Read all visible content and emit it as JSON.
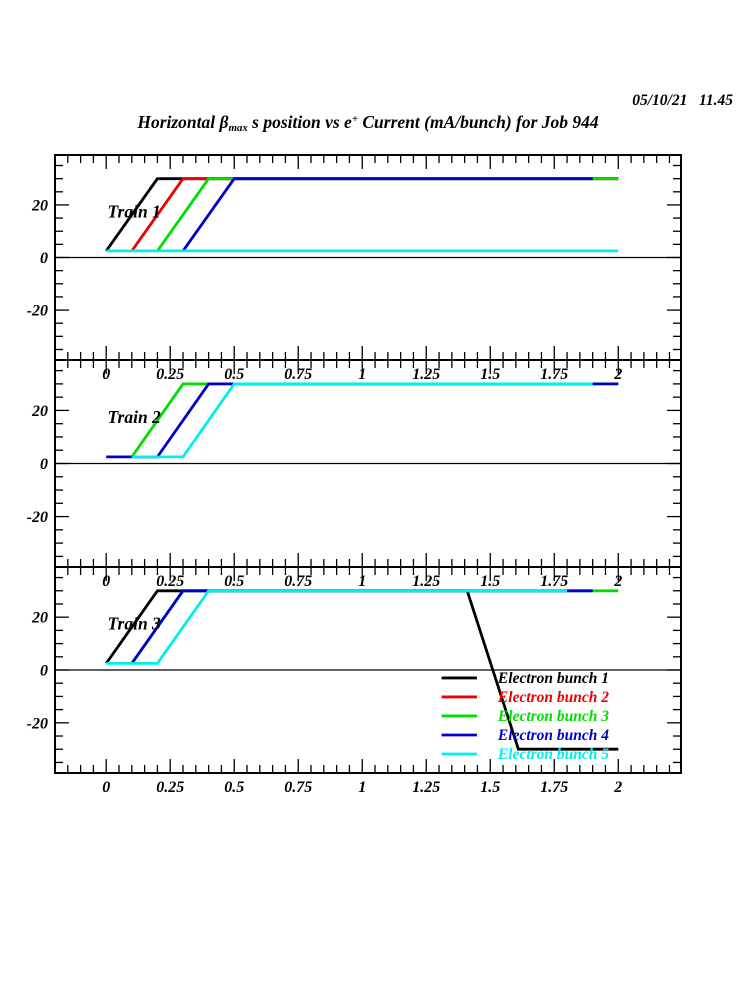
{
  "header": {
    "timestamp": "05/10/21   11.45",
    "title": {
      "part1": "Horizontal ",
      "beta": "β",
      "beta_sub": "max",
      "part2": " s position vs e",
      "e_sup": "+",
      "part3": " Current (mA/bunch) for Job 944"
    }
  },
  "colors": {
    "bunch1": "#000000",
    "bunch2": "#ee0000",
    "bunch3": "#00dd00",
    "bunch4": "#0000cc",
    "bunch5": "#00eeee",
    "frame": "#000000",
    "background": "#ffffff"
  },
  "axes": {
    "xlim": [
      -0.2,
      2.245
    ],
    "ylim": [
      -39,
      39
    ],
    "x_tick_values": [
      0,
      0.25,
      0.5,
      0.75,
      1,
      1.25,
      1.5,
      1.75,
      2
    ],
    "x_tick_labels": [
      "0",
      "0.25",
      "0.5",
      "0.75",
      "1",
      "1.25",
      "1.5",
      "1.75",
      "2"
    ],
    "x_minor_step": 0.05,
    "y_tick_values": [
      20,
      0,
      -20
    ],
    "y_tick_labels": [
      "20",
      "0",
      "-20"
    ],
    "y_minor_step": 5,
    "xlabel": "",
    "ylabel": "",
    "grid": false
  },
  "chart_data": [
    {
      "type": "line",
      "panel": "Train 1",
      "annotation": {
        "text": "Train 1",
        "x": 0.005,
        "y": 15.3
      },
      "series": [
        {
          "name": "Electron bunch 1",
          "color_key": "bunch1",
          "points": [
            [
              0,
              2.5
            ],
            [
              0.2,
              30
            ],
            [
              2,
              30
            ]
          ]
        },
        {
          "name": "Electron bunch 2",
          "color_key": "bunch2",
          "points": [
            [
              0.1,
              2.5
            ],
            [
              0.3,
              30
            ],
            [
              2,
              30
            ]
          ]
        },
        {
          "name": "Electron bunch 3",
          "color_key": "bunch3",
          "points": [
            [
              0.2,
              2.5
            ],
            [
              0.4,
              30
            ],
            [
              2,
              30
            ]
          ]
        },
        {
          "name": "Electron bunch 4",
          "color_key": "bunch4",
          "points": [
            [
              0.3,
              2.5
            ],
            [
              0.5,
              30
            ],
            [
              1.9,
              30
            ]
          ]
        },
        {
          "name": "Electron bunch 5",
          "color_key": "bunch5",
          "points": [
            [
              0,
              2.5
            ],
            [
              2,
              2.5
            ]
          ]
        }
      ]
    },
    {
      "type": "line",
      "panel": "Train 2",
      "annotation": {
        "text": "Train 2",
        "x": 0.005,
        "y": 15.3
      },
      "series": [
        {
          "name": "Electron bunch 3",
          "color_key": "bunch3",
          "points": [
            [
              0.1,
              2.5
            ],
            [
              0.3,
              30
            ],
            [
              2,
              30
            ]
          ]
        },
        {
          "name": "Electron bunch 4",
          "color_key": "bunch4",
          "points": [
            [
              0,
              2.5
            ],
            [
              0.2,
              2.5
            ],
            [
              0.4,
              30
            ],
            [
              2,
              30
            ]
          ]
        },
        {
          "name": "Electron bunch 5",
          "color_key": "bunch5",
          "points": [
            [
              0.1,
              2.5
            ],
            [
              0.3,
              2.5
            ],
            [
              0.5,
              30
            ],
            [
              1.9,
              30
            ]
          ]
        }
      ]
    },
    {
      "type": "line",
      "panel": "Train 3",
      "annotation": {
        "text": "Train 3",
        "x": 0.005,
        "y": 15.3
      },
      "series": [
        {
          "name": "Electron bunch 1",
          "color_key": "bunch1",
          "points": [
            [
              0,
              2.5
            ],
            [
              0.2,
              30
            ],
            [
              1.41,
              30
            ],
            [
              1.61,
              -30
            ],
            [
              2,
              -30
            ]
          ]
        },
        {
          "name": "Electron bunch 3",
          "color_key": "bunch3",
          "points": [
            [
              0.1,
              2.5
            ],
            [
              0.3,
              30
            ],
            [
              2,
              30
            ]
          ]
        },
        {
          "name": "Electron bunch 4",
          "color_key": "bunch4",
          "points": [
            [
              0.1,
              2.5
            ],
            [
              0.3,
              30
            ],
            [
              1.9,
              30
            ]
          ]
        },
        {
          "name": "Electron bunch 5",
          "color_key": "bunch5",
          "points": [
            [
              0,
              2.5
            ],
            [
              0.2,
              2.5
            ],
            [
              0.4,
              30
            ],
            [
              1.8,
              30
            ]
          ]
        }
      ],
      "legend": {
        "entries": [
          {
            "label": "Electron bunch 1",
            "color_key": "bunch1"
          },
          {
            "label": "Electron bunch 2",
            "color_key": "bunch2"
          },
          {
            "label": "Electron bunch 3",
            "color_key": "bunch3"
          },
          {
            "label": "Electron bunch 4",
            "color_key": "bunch4"
          },
          {
            "label": "Electron bunch 5",
            "color_key": "bunch5"
          }
        ],
        "line_x": [
          1.31,
          1.448
        ],
        "text_x": 1.53,
        "y_first": -3,
        "y_step": -7.2
      }
    }
  ]
}
